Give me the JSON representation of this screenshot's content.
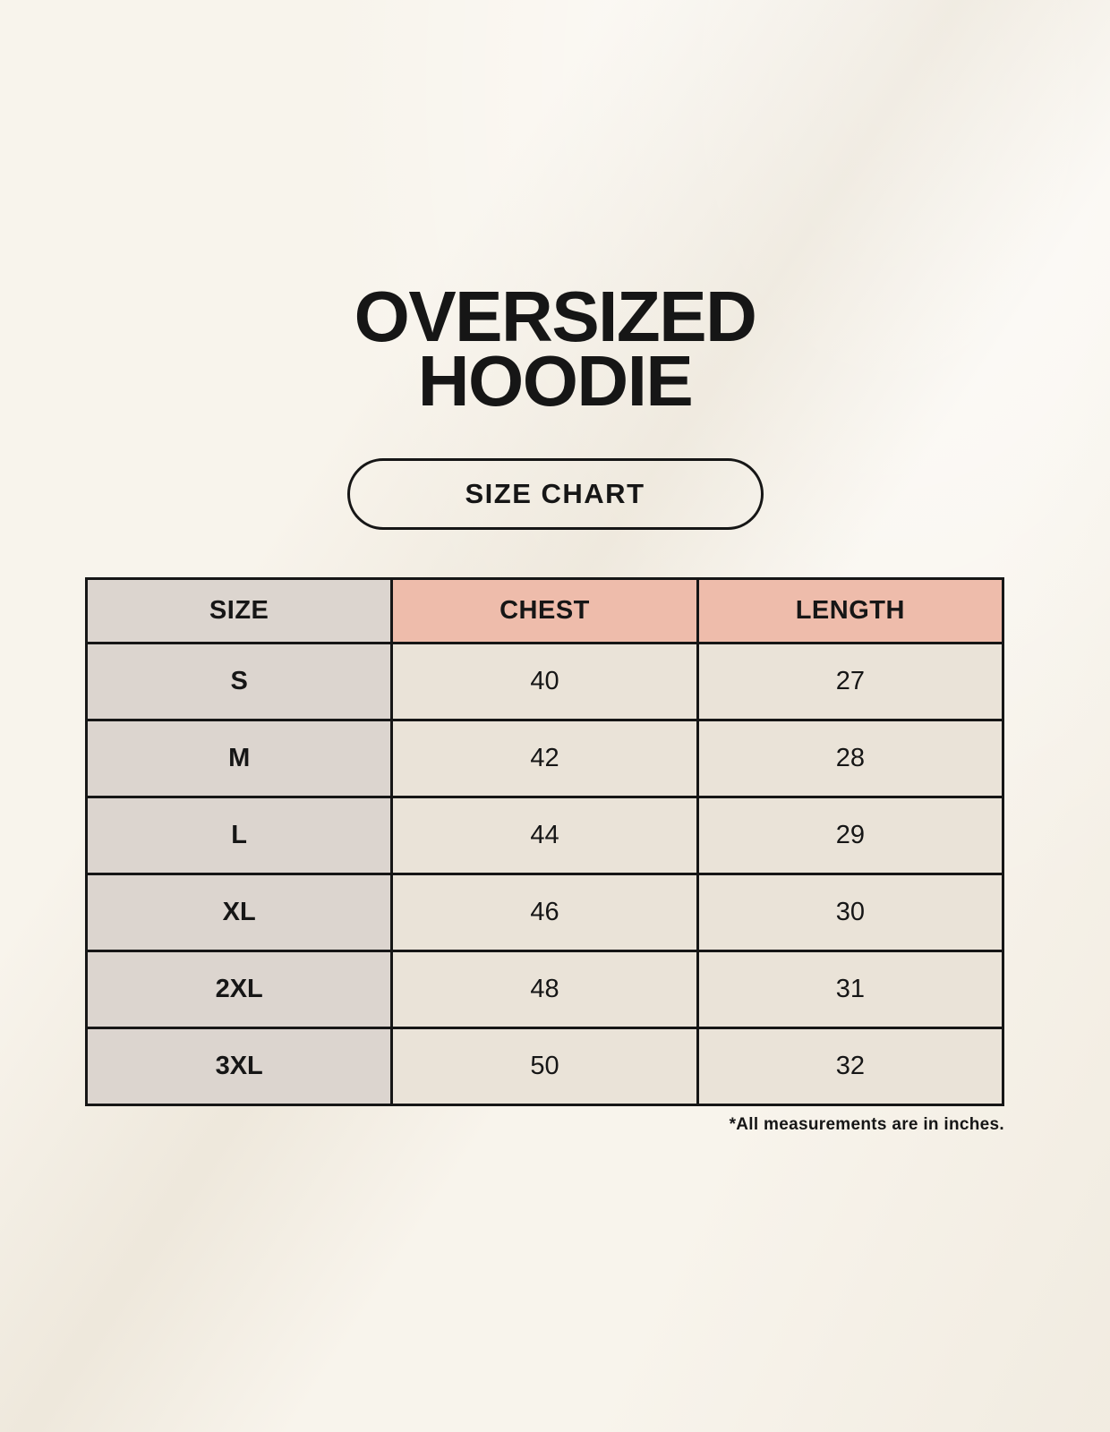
{
  "page": {
    "title_line1": "OVERSIZED",
    "title_line2": "HOODIE",
    "badge_label": "SIZE CHART",
    "footnote": "*All measurements are in inches."
  },
  "colors": {
    "background": "#f8f4ec",
    "size_column_bg": "#dcd5cf",
    "accent_header_bg": "#eebcab",
    "data_cell_bg": "#eae3d8",
    "border": "#161616",
    "text": "#161616"
  },
  "table": {
    "columns": [
      "SIZE",
      "CHEST",
      "LENGTH"
    ],
    "rows": [
      {
        "size": "S",
        "chest": "40",
        "length": "27"
      },
      {
        "size": "M",
        "chest": "42",
        "length": "28"
      },
      {
        "size": "L",
        "chest": "44",
        "length": "29"
      },
      {
        "size": "XL",
        "chest": "46",
        "length": "30"
      },
      {
        "size": "2XL",
        "chest": "48",
        "length": "31"
      },
      {
        "size": "3XL",
        "chest": "50",
        "length": "32"
      }
    ]
  }
}
